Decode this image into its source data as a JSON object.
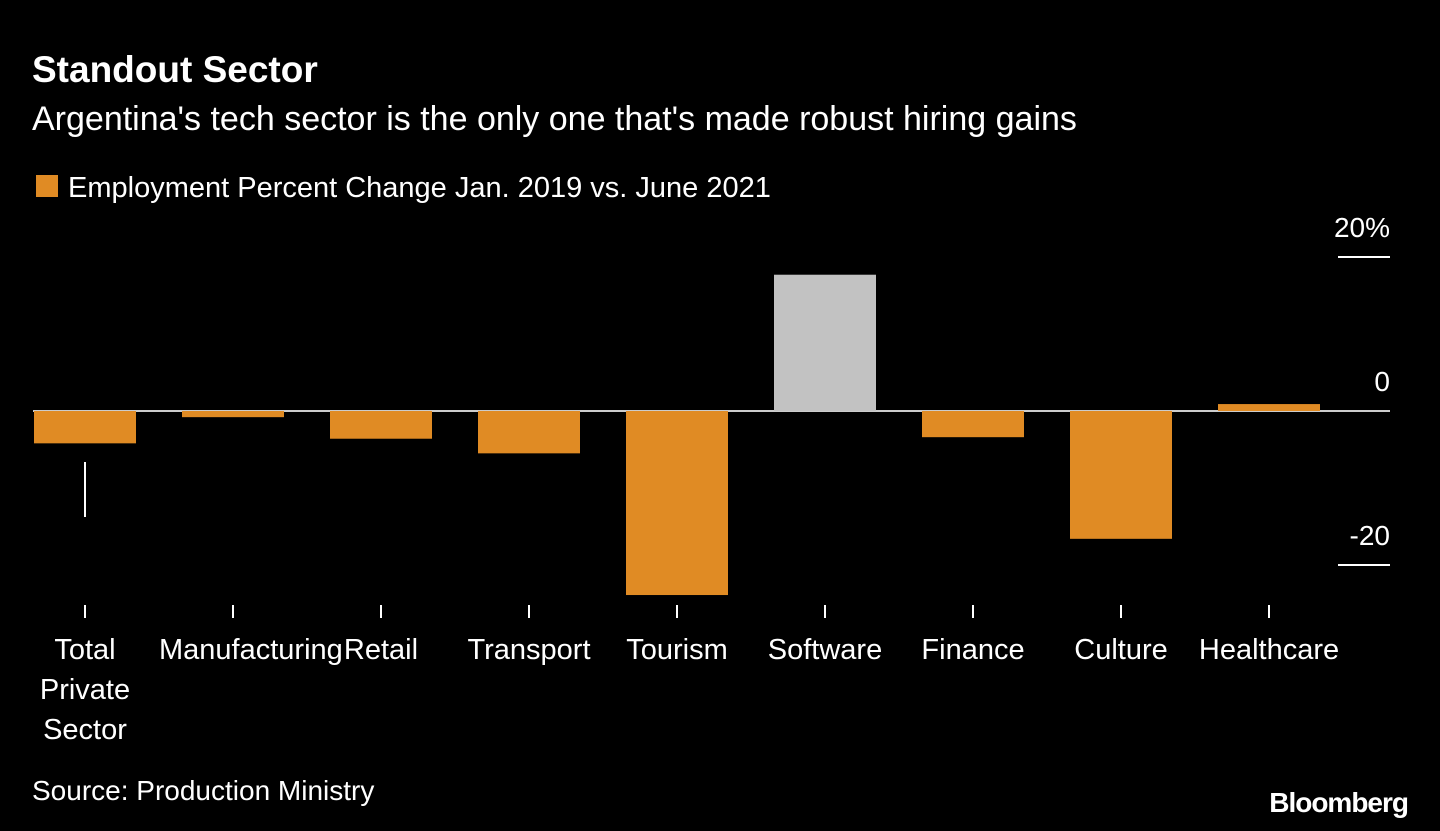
{
  "chart_data": {
    "type": "bar",
    "title": "Standout Sector",
    "subtitle": "Argentina's tech sector is the only one that's made robust hiring gains",
    "legend": "Employment Percent Change Jan. 2019 vs. June 2021",
    "legend_color": "#e08b24",
    "categories": [
      "Total Private Sector",
      "Manufacturing",
      "Retail",
      "Transport",
      "Tourism",
      "Software",
      "Finance",
      "Culture",
      "Healthcare"
    ],
    "values": [
      -4.2,
      -0.8,
      -3.6,
      -5.5,
      -23.9,
      17.7,
      -3.4,
      -16.6,
      0.9
    ],
    "colors": [
      "#e08b24",
      "#e08b24",
      "#e08b24",
      "#e08b24",
      "#e08b24",
      "#c2c2c2",
      "#e08b24",
      "#e08b24",
      "#e08b24"
    ],
    "ylim": [
      -25,
      20
    ],
    "yticks": [
      {
        "value": 20,
        "label": "20%"
      },
      0,
      -20
    ],
    "source": "Source: Production Ministry",
    "brand": "Bloomberg"
  }
}
